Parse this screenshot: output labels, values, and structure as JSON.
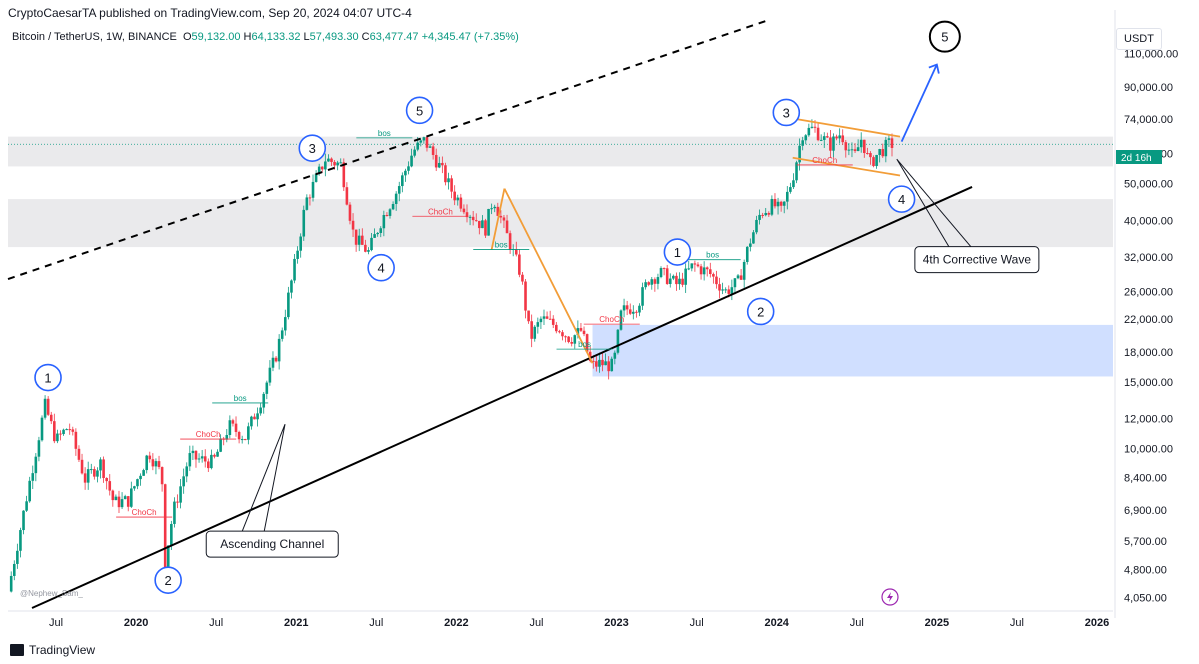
{
  "header": {
    "publisher_line": "CryptoCaesarTA published on TradingView.com, Sep 20, 2024 04:07 UTC-4"
  },
  "symbol": {
    "name": "Bitcoin / TetherUS, 1W, BINANCE",
    "open_label": "O",
    "open_value": "59,132.00",
    "high_label": "H",
    "high_value": "64,133.32",
    "low_label": "L",
    "low_value": "57,493.30",
    "close_label": "C",
    "close_value": "63,477.47",
    "change": "+4,345.47 (+7.35%)"
  },
  "currency": "USDT",
  "countdown_badge": "2d 16h",
  "footer": {
    "brand": "TradingView"
  },
  "watermark": "@Nephew_Sam_",
  "colors": {
    "up": "#089981",
    "down": "#f23645",
    "wave_circle": "#2962ff",
    "zone_gray": "#d8d8dc",
    "zone_blue": "#aac4ff",
    "orange": "#f29d38",
    "arrow_blue": "#2962ff"
  },
  "chart_data": {
    "type": "candlestick",
    "y_scale": "log",
    "ylim": [
      3800,
      135000
    ],
    "y_ticks": [
      "110,000.00",
      "90,000.00",
      "74,000.00",
      "60,000.00",
      "50,000.00",
      "40,000.00",
      "32,000.00",
      "26,000.00",
      "22,000.00",
      "18,000.00",
      "15,000.00",
      "12,000.00",
      "10,000.00",
      "8,400.00",
      "6,900.00",
      "5,700.00",
      "4,800.00",
      "4,050.00"
    ],
    "y_tick_values": [
      110000,
      90000,
      74000,
      60000,
      50000,
      40000,
      32000,
      26000,
      22000,
      18000,
      15000,
      12000,
      10000,
      8400,
      6900,
      5700,
      4800,
      4050
    ],
    "x_ticks": [
      {
        "label": "Jul",
        "year": false,
        "t": 2019.5
      },
      {
        "label": "2020",
        "year": true,
        "t": 2020.0
      },
      {
        "label": "Jul",
        "year": false,
        "t": 2020.5
      },
      {
        "label": "2021",
        "year": true,
        "t": 2021.0
      },
      {
        "label": "Jul",
        "year": false,
        "t": 2021.5
      },
      {
        "label": "2022",
        "year": true,
        "t": 2022.0
      },
      {
        "label": "Jul",
        "year": false,
        "t": 2022.5
      },
      {
        "label": "2023",
        "year": true,
        "t": 2023.0
      },
      {
        "label": "Jul",
        "year": false,
        "t": 2023.5
      },
      {
        "label": "2024",
        "year": true,
        "t": 2024.0
      },
      {
        "label": "Jul",
        "year": false,
        "t": 2024.5
      },
      {
        "label": "2025",
        "year": true,
        "t": 2025.0
      },
      {
        "label": "Jul",
        "year": false,
        "t": 2025.5
      },
      {
        "label": "2026",
        "year": true,
        "t": 2026.0
      }
    ],
    "x_range": [
      2019.2,
      2026.1
    ],
    "price_path": [
      [
        2019.22,
        4200
      ],
      [
        2019.35,
        8000
      ],
      [
        2019.45,
        13000
      ],
      [
        2019.52,
        10500
      ],
      [
        2019.6,
        11500
      ],
      [
        2019.7,
        8300
      ],
      [
        2019.8,
        9200
      ],
      [
        2019.88,
        7200
      ],
      [
        2019.97,
        7300
      ],
      [
        2020.1,
        9800
      ],
      [
        2020.18,
        8500
      ],
      [
        2020.2,
        5000
      ],
      [
        2020.25,
        6800
      ],
      [
        2020.35,
        9500
      ],
      [
        2020.5,
        9200
      ],
      [
        2020.6,
        11500
      ],
      [
        2020.7,
        10700
      ],
      [
        2020.8,
        13500
      ],
      [
        2020.9,
        18000
      ],
      [
        2021.0,
        29000
      ],
      [
        2021.08,
        45000
      ],
      [
        2021.2,
        58000
      ],
      [
        2021.3,
        56000
      ],
      [
        2021.38,
        36000
      ],
      [
        2021.47,
        33000
      ],
      [
        2021.55,
        40000
      ],
      [
        2021.65,
        48000
      ],
      [
        2021.75,
        61000
      ],
      [
        2021.82,
        65000
      ],
      [
        2021.9,
        57000
      ],
      [
        2022.0,
        47000
      ],
      [
        2022.1,
        42000
      ],
      [
        2022.2,
        38000
      ],
      [
        2022.25,
        46000
      ],
      [
        2022.32,
        38000
      ],
      [
        2022.42,
        29000
      ],
      [
        2022.48,
        19500
      ],
      [
        2022.55,
        22000
      ],
      [
        2022.65,
        21000
      ],
      [
        2022.73,
        19500
      ],
      [
        2022.8,
        20500
      ],
      [
        2022.86,
        16500
      ],
      [
        2022.92,
        16800
      ],
      [
        2023.0,
        16500
      ],
      [
        2023.05,
        23000
      ],
      [
        2023.15,
        24000
      ],
      [
        2023.22,
        28000
      ],
      [
        2023.3,
        29000
      ],
      [
        2023.4,
        27000
      ],
      [
        2023.5,
        30500
      ],
      [
        2023.6,
        29000
      ],
      [
        2023.7,
        26000
      ],
      [
        2023.78,
        27500
      ],
      [
        2023.85,
        35000
      ],
      [
        2023.92,
        42000
      ],
      [
        2024.0,
        44000
      ],
      [
        2024.05,
        42000
      ],
      [
        2024.12,
        52000
      ],
      [
        2024.18,
        68000
      ],
      [
        2024.25,
        70000
      ],
      [
        2024.35,
        63000
      ],
      [
        2024.42,
        68000
      ],
      [
        2024.5,
        58000
      ],
      [
        2024.55,
        66000
      ],
      [
        2024.6,
        56000
      ],
      [
        2024.65,
        60000
      ],
      [
        2024.72,
        63477
      ]
    ],
    "zones": [
      {
        "name": "resistance-zone",
        "t0": 2019.2,
        "t1": 2026.1,
        "low": 55500,
        "high": 66500,
        "color": "gray"
      },
      {
        "name": "support-zone",
        "t0": 2019.2,
        "t1": 2026.1,
        "low": 34000,
        "high": 45500,
        "color": "gray"
      },
      {
        "name": "demand-zone",
        "t0": 2022.85,
        "t1": 2026.1,
        "low": 15500,
        "high": 21200,
        "color": "blue"
      }
    ],
    "lines": [
      {
        "name": "ascending-channel-support",
        "style": "solid",
        "p1": [
          2019.35,
          3800
        ],
        "p2": [
          2025.22,
          49000
        ]
      },
      {
        "name": "ascending-channel-resistance",
        "style": "dashed",
        "p1": [
          2019.2,
          28000
        ],
        "p2": [
          2023.95,
          135000
        ]
      }
    ],
    "waves": [
      {
        "label": "1",
        "t": 2019.45,
        "p": 15400
      },
      {
        "label": "2",
        "t": 2020.2,
        "p": 4500
      },
      {
        "label": "3",
        "t": 2021.1,
        "p": 62000
      },
      {
        "label": "4",
        "t": 2021.53,
        "p": 30000
      },
      {
        "label": "5",
        "t": 2021.77,
        "p": 78000
      },
      {
        "label": "1",
        "t": 2023.38,
        "p": 33000
      },
      {
        "label": "2",
        "t": 2023.9,
        "p": 23000
      },
      {
        "label": "3",
        "t": 2024.06,
        "p": 77000
      },
      {
        "label": "4",
        "t": 2024.78,
        "p": 45500
      },
      {
        "label": "5",
        "t": 2025.05,
        "p": 122000
      }
    ],
    "structure_labels": [
      {
        "text": "bos",
        "type": "bos",
        "t": 2021.55,
        "p": 66000
      },
      {
        "text": "bos",
        "type": "bos",
        "t": 2020.65,
        "p": 13200
      },
      {
        "text": "ChoCh",
        "type": "choch",
        "t": 2020.45,
        "p": 10600
      },
      {
        "text": "ChoCh",
        "type": "choch",
        "t": 2020.05,
        "p": 6600
      },
      {
        "text": "ChoCh",
        "type": "choch",
        "t": 2021.9,
        "p": 41000
      },
      {
        "text": "bos",
        "type": "bos",
        "t": 2022.28,
        "p": 33500
      },
      {
        "text": "ChoCh",
        "type": "choch",
        "t": 2022.97,
        "p": 21300
      },
      {
        "text": "bos",
        "type": "bos",
        "t": 2022.8,
        "p": 18300
      },
      {
        "text": "bos",
        "type": "bos",
        "t": 2023.6,
        "p": 31500
      },
      {
        "text": "ChoCh",
        "type": "choch",
        "t": 2024.3,
        "p": 56000
      }
    ],
    "annotations": [
      {
        "name": "ascending-channel-label",
        "text": "Ascending Channel",
        "t": 2020.85,
        "p": 5600
      },
      {
        "name": "corrective-wave-label",
        "text": "4th Corrective Wave",
        "t": 2025.25,
        "p": 31500
      }
    ],
    "last_price": 63477.47
  }
}
